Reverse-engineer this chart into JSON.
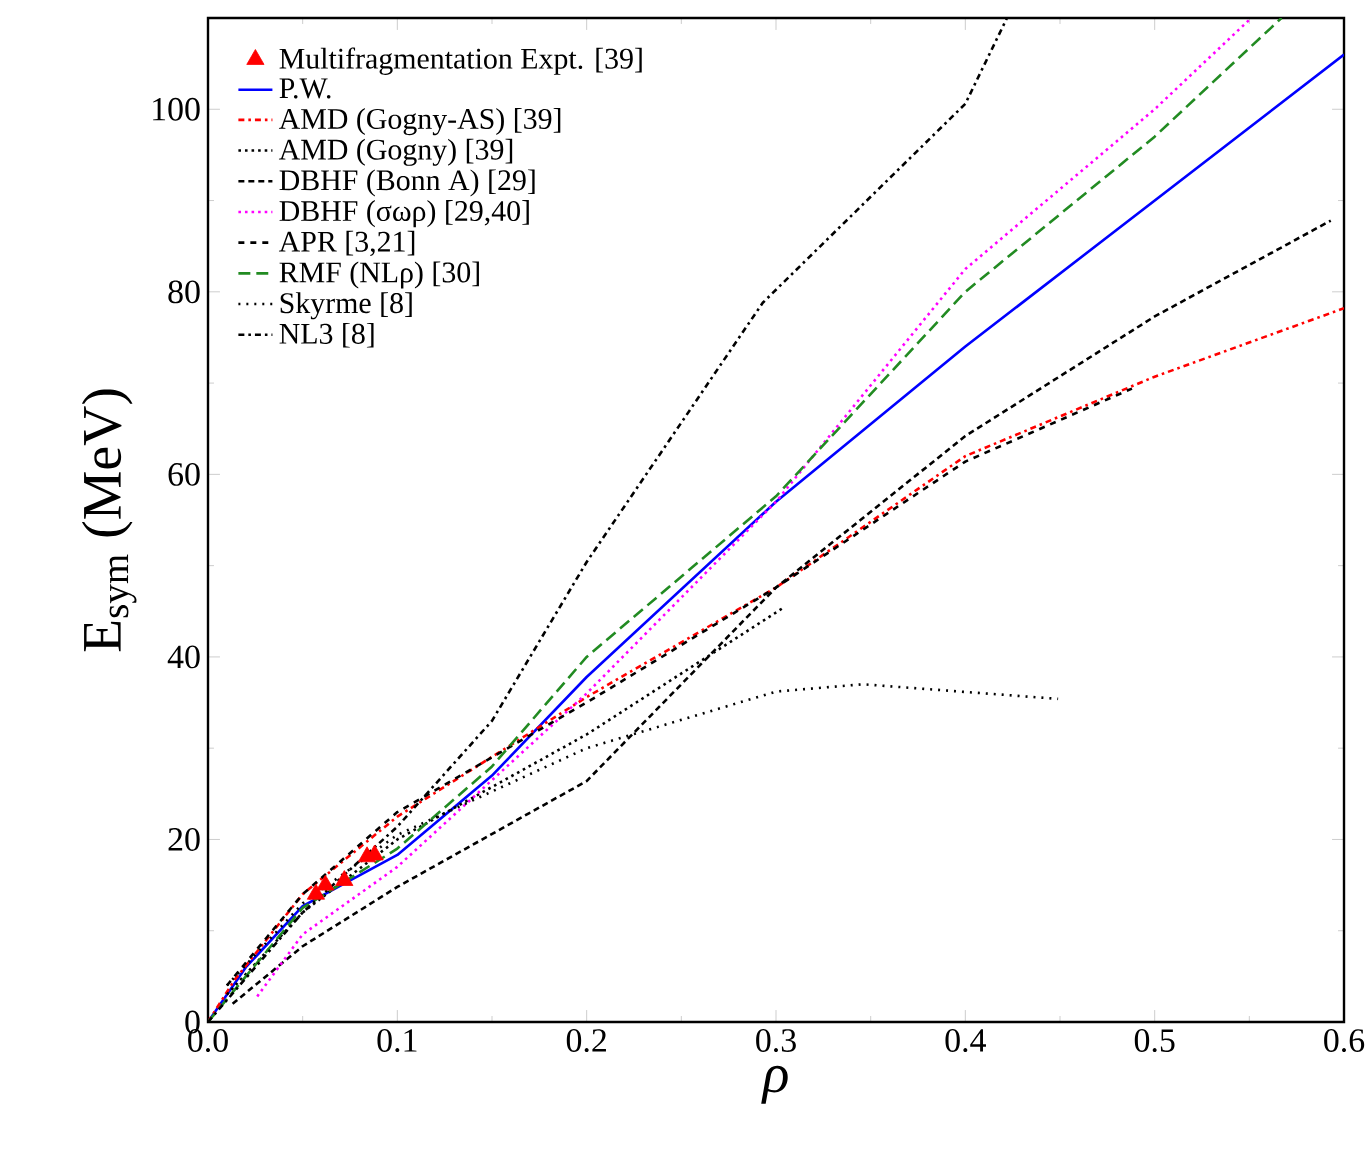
{
  "chart_data": {
    "type": "line",
    "xlabel": "ρ",
    "ylabel": "E$_{sym}$ (MeV)",
    "xlim": [
      0,
      0.6
    ],
    "ylim": [
      0,
      110
    ],
    "xticks": [
      {
        "value": 0,
        "label": "0.0"
      },
      {
        "value": 0.1,
        "label": "0.1"
      },
      {
        "value": 0.2,
        "label": "0.2"
      },
      {
        "value": 0.3,
        "label": "0.3"
      },
      {
        "value": 0.4,
        "label": "0.4"
      },
      {
        "value": 0.5,
        "label": "0.5"
      },
      {
        "value": 0.6,
        "label": "0.6"
      }
    ],
    "yticks": [
      0,
      20,
      40,
      60,
      80,
      100
    ],
    "legend": "top left",
    "grid": false,
    "series": [
      {
        "name": "Multifragmentation Expt. [39]",
        "type": "scatter",
        "marker": "triangle",
        "color": "#ff0000",
        "x": [
          0.057,
          0.062,
          0.072,
          0.084,
          0.088
        ],
        "values": [
          14,
          15,
          15.5,
          18.1,
          18.3
        ]
      },
      {
        "name": "P.W.",
        "color": "#0000ff",
        "line_style": "solid",
        "x": [
          0,
          0.02,
          0.05,
          0.1,
          0.15,
          0.2,
          0.3,
          0.4,
          0.5,
          0.6
        ],
        "values": [
          0,
          6,
          12.7,
          18.3,
          27,
          37.8,
          57,
          74,
          90,
          106
        ]
      },
      {
        "name": "AMD (Gogny-AS) [39]",
        "color": "#ff0000",
        "line_style": "dashdot",
        "x": [
          0,
          0.014,
          0.05,
          0.1,
          0.2,
          0.3,
          0.4,
          0.5,
          0.6
        ],
        "values": [
          0,
          4.6,
          14,
          22.5,
          35.6,
          47.6,
          62,
          70.7,
          78.2
        ]
      },
      {
        "name": "AMD (Gogny) [39]",
        "color": "#000000",
        "line_style": "dotted",
        "x": [
          0.01,
          0.05,
          0.1,
          0.2,
          0.304
        ],
        "values": [
          3,
          12,
          20,
          31.5,
          45.4
        ]
      },
      {
        "name": "DBHF (Bonn A) [29]",
        "color": "#000000",
        "line_style": "densely dashed",
        "x": [
          0.013,
          0.05,
          0.1,
          0.2,
          0.3,
          0.4,
          0.5,
          0.593
        ],
        "values": [
          2,
          8.3,
          14.8,
          26.4,
          47.6,
          64.2,
          77.3,
          87.8
        ]
      },
      {
        "name": "DBHF (σωρ) [29,40]",
        "color": "#ff00ff",
        "line_style": "dotted",
        "x": [
          0.026,
          0.05,
          0.1,
          0.2,
          0.3,
          0.4,
          0.5,
          0.551
        ],
        "values": [
          2.8,
          9.6,
          17,
          36,
          57,
          82.5,
          100,
          110
        ]
      },
      {
        "name": "APR [3,21]",
        "color": "#000000",
        "line_style": "dashed",
        "x": [
          0.01,
          0.05,
          0.1,
          0.2,
          0.3,
          0.4,
          0.488
        ],
        "values": [
          4,
          14,
          23,
          35,
          47.6,
          61.4,
          69.4
        ]
      },
      {
        "name": "RMF (NLρ) [30]",
        "color": "#228b22",
        "line_style": "loosely dashed",
        "x": [
          0,
          0.05,
          0.1,
          0.15,
          0.2,
          0.3,
          0.4,
          0.5,
          0.567
        ],
        "values": [
          0,
          12.5,
          19,
          28,
          40,
          57.6,
          80,
          97,
          110
        ]
      },
      {
        "name": "Skyrme [8]",
        "color": "#000000",
        "line_style": "loosely dotted",
        "x": [
          0.01,
          0.05,
          0.1,
          0.2,
          0.3,
          0.346,
          0.449
        ],
        "values": [
          4,
          13,
          20.5,
          30,
          36.2,
          37,
          35.4
        ]
      },
      {
        "name": "NL3 [8]",
        "color": "#000000",
        "line_style": "dashdot",
        "x": [
          0,
          0.05,
          0.1,
          0.15,
          0.2,
          0.293,
          0.4,
          0.422
        ],
        "values": [
          0,
          12,
          21.4,
          33,
          50.4,
          78.8,
          100.6,
          110
        ]
      }
    ]
  }
}
